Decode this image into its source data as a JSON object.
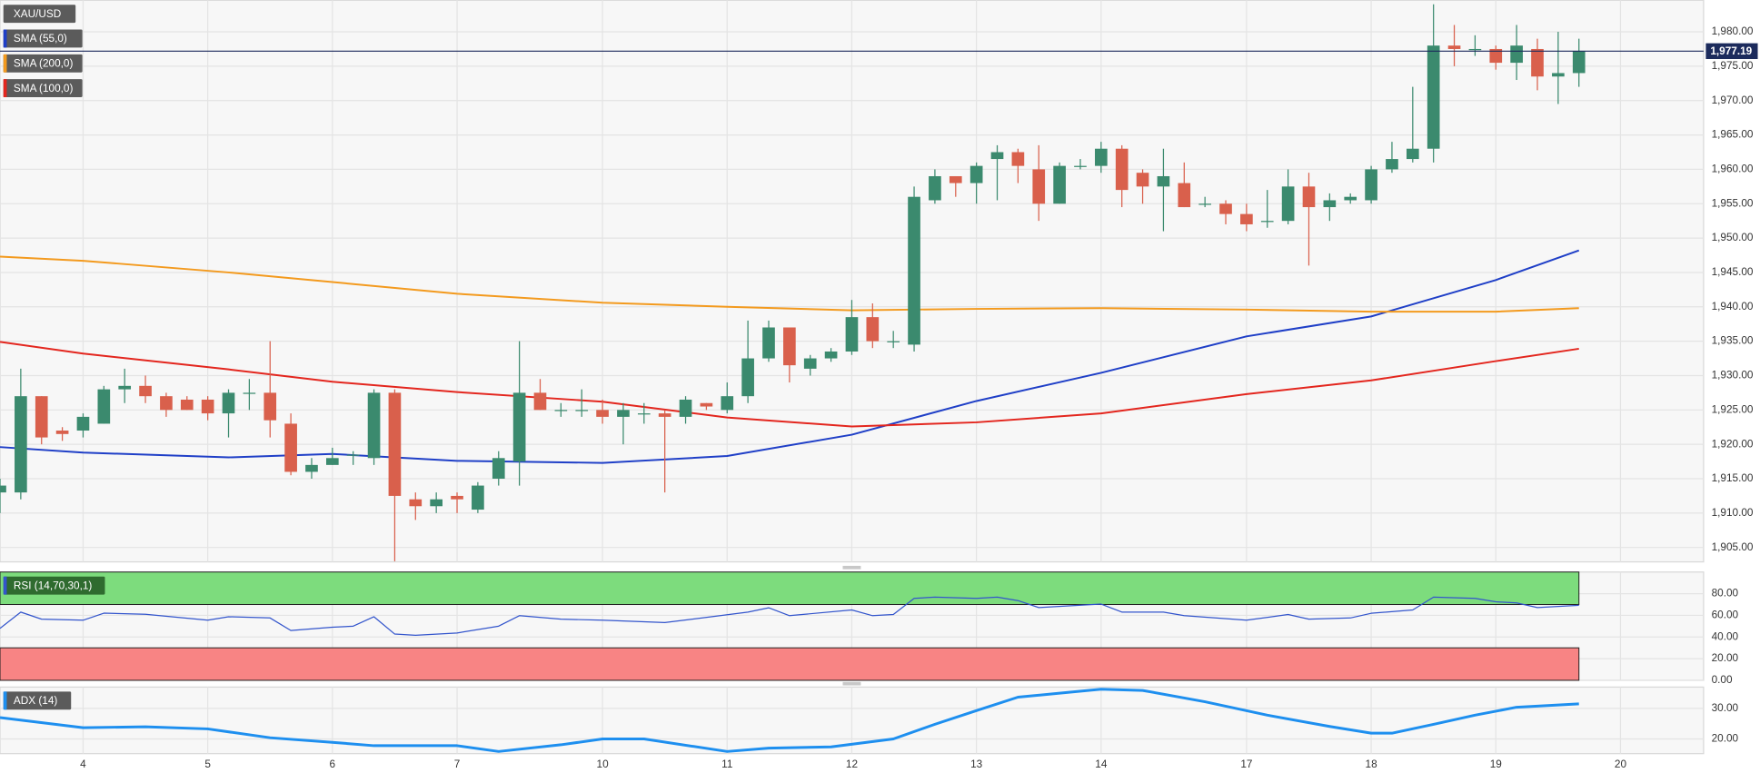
{
  "chart_data": [
    {
      "type": "candlestick",
      "title": "XAU/USD",
      "xlim": [
        0,
        82
      ],
      "xticks": [
        {
          "value": 4,
          "label": "4"
        },
        {
          "value": 10,
          "label": "5"
        },
        {
          "value": 16,
          "label": "6"
        },
        {
          "value": 22,
          "label": "7"
        },
        {
          "value": 29,
          "label": "10"
        },
        {
          "value": 35,
          "label": "11"
        },
        {
          "value": 41,
          "label": "12"
        },
        {
          "value": 47,
          "label": "13"
        },
        {
          "value": 53,
          "label": "14"
        },
        {
          "value": 60,
          "label": "17"
        },
        {
          "value": 66,
          "label": "18"
        },
        {
          "value": 72,
          "label": "19"
        },
        {
          "value": 78,
          "label": "20"
        }
      ],
      "ylim": [
        1902.9,
        1984.6
      ],
      "yticks": [
        {
          "value": 1905,
          "label": "1,905.00"
        },
        {
          "value": 1910,
          "label": "1,910.00"
        },
        {
          "value": 1915,
          "label": "1,915.00"
        },
        {
          "value": 1920,
          "label": "1,920.00"
        },
        {
          "value": 1925,
          "label": "1,925.00"
        },
        {
          "value": 1930,
          "label": "1,930.00"
        },
        {
          "value": 1935,
          "label": "1,935.00"
        },
        {
          "value": 1940,
          "label": "1,940.00"
        },
        {
          "value": 1945,
          "label": "1,945.00"
        },
        {
          "value": 1950,
          "label": "1,950.00"
        },
        {
          "value": 1955,
          "label": "1,955.00"
        },
        {
          "value": 1960,
          "label": "1,960.00"
        },
        {
          "value": 1965,
          "label": "1,965.00"
        },
        {
          "value": 1970,
          "label": "1,970.00"
        },
        {
          "value": 1975,
          "label": "1,975.00"
        },
        {
          "value": 1980,
          "label": "1,980.00"
        }
      ],
      "grid": true,
      "up_color": "#3b8a6e",
      "down_color": "#d9604c",
      "open": [
        1913,
        1913,
        1927,
        1922,
        1922,
        1923,
        1928,
        1928.5,
        1927,
        1926.5,
        1926.5,
        1924.5,
        1927.5,
        1927.5,
        1923,
        1916,
        1917,
        1918.5,
        1918,
        1927.5,
        1912,
        1911,
        1912.5,
        1910.5,
        1915,
        1917.5,
        1927.5,
        1925,
        1925,
        1925,
        1924,
        1924.5,
        1924.5,
        1924,
        1926,
        1925,
        1927,
        1932.5,
        1937,
        1931,
        1932.5,
        1933.5,
        1938.5,
        1935,
        1934.5,
        1955.5,
        1959,
        1958,
        1961.5,
        1962.5,
        1960,
        1955,
        1960.5,
        1960.5,
        1963,
        1959.5,
        1957.5,
        1958,
        1955,
        1955,
        1953.5,
        1952.5,
        1952.5,
        1957.5,
        1954.5,
        1955.5,
        1955.5,
        1960,
        1961.5,
        1963,
        1978,
        1977.5,
        1977.5,
        1975.5,
        1977.5,
        1973.5,
        1974
      ],
      "high": [
        1915,
        1931,
        1927,
        1922.5,
        1924.5,
        1928.5,
        1931,
        1930,
        1927.5,
        1927,
        1927,
        1928,
        1929.5,
        1935,
        1924.5,
        1918,
        1919.5,
        1919,
        1928,
        1928,
        1913,
        1913,
        1913,
        1914.5,
        1919,
        1935,
        1929.5,
        1926,
        1928,
        1926.5,
        1926,
        1926,
        1925,
        1927,
        1926,
        1929,
        1938,
        1938,
        1937,
        1933,
        1934,
        1941,
        1940.5,
        1936.5,
        1957.5,
        1960,
        1959,
        1961,
        1963.5,
        1963,
        1963.5,
        1961,
        1961.5,
        1964,
        1963.5,
        1960,
        1963,
        1961,
        1956,
        1955.5,
        1955,
        1957,
        1960,
        1959.5,
        1956.5,
        1956.5,
        1960.5,
        1964,
        1972,
        1984,
        1981,
        1979.5,
        1978,
        1981,
        1979,
        1980,
        1979
      ],
      "low": [
        1910,
        1912,
        1920,
        1920.5,
        1921,
        1923,
        1926,
        1926,
        1924,
        1925,
        1923.5,
        1921,
        1925,
        1921,
        1915.5,
        1915,
        1917,
        1917,
        1917,
        1903,
        1909,
        1910,
        1910,
        1910,
        1914,
        1914,
        1925,
        1924,
        1924,
        1923,
        1920,
        1923,
        1913,
        1923,
        1925,
        1924.5,
        1926,
        1932,
        1929,
        1930,
        1932,
        1933,
        1934,
        1934,
        1933.5,
        1955,
        1956,
        1955,
        1955.5,
        1958,
        1952.5,
        1955,
        1960,
        1959.5,
        1954.5,
        1955,
        1951,
        1954.5,
        1954.5,
        1952,
        1951,
        1951.5,
        1952,
        1946,
        1952.5,
        1955,
        1955,
        1959.5,
        1961,
        1961,
        1975,
        1976.5,
        1974.5,
        1973,
        1971.5,
        1969.5,
        1972
      ],
      "close": [
        1914,
        1927,
        1921,
        1921.5,
        1924,
        1928,
        1928.5,
        1927,
        1925,
        1925,
        1924.5,
        1927.5,
        1927.5,
        1923.5,
        1916,
        1917,
        1918,
        1918.5,
        1927.5,
        1912.5,
        1911,
        1912,
        1912,
        1914,
        1918,
        1927.5,
        1925,
        1925,
        1925,
        1924,
        1925,
        1924.5,
        1924,
        1926.5,
        1925.5,
        1927,
        1932.5,
        1937,
        1931.5,
        1932.5,
        1933.5,
        1938.5,
        1935,
        1935,
        1956,
        1959,
        1958,
        1960.5,
        1962.5,
        1960.5,
        1955,
        1960.5,
        1960.5,
        1963,
        1957,
        1957.5,
        1959,
        1954.5,
        1955,
        1953.5,
        1952,
        1952.5,
        1957.5,
        1954.5,
        1955.5,
        1956,
        1960,
        1961.5,
        1963,
        1978,
        1977.5,
        1977.5,
        1975.5,
        1978,
        1973.5,
        1974,
        1977.19
      ],
      "last_price": {
        "value": 1977.19,
        "label": "1,977.19"
      },
      "last_price_color": "#1c2b5c",
      "series": [
        {
          "name": "SMA (55,0)",
          "color": "#1f3fc7",
          "x": [
            0,
            4,
            11,
            16,
            22,
            29,
            35,
            41,
            47,
            53,
            60,
            66,
            72,
            76
          ],
          "values": [
            1919.6,
            1918.8,
            1918.1,
            1918.6,
            1917.6,
            1917.3,
            1918.3,
            1921.4,
            1926.3,
            1930.4,
            1935.7,
            1938.6,
            1943.9,
            1948.2
          ]
        },
        {
          "name": "SMA (200,0)",
          "color": "#f39a1e",
          "x": [
            0,
            4,
            11,
            16,
            22,
            29,
            35,
            41,
            47,
            53,
            60,
            66,
            72,
            76
          ],
          "values": [
            1947.3,
            1946.7,
            1945.0,
            1943.6,
            1941.9,
            1940.6,
            1940.0,
            1939.5,
            1939.7,
            1939.8,
            1939.6,
            1939.3,
            1939.3,
            1939.8
          ]
        },
        {
          "name": "SMA (100,0)",
          "color": "#e3261e",
          "x": [
            0,
            4,
            11,
            16,
            22,
            29,
            35,
            41,
            47,
            53,
            60,
            66,
            72,
            76
          ],
          "values": [
            1934.9,
            1933.2,
            1930.9,
            1929.1,
            1927.6,
            1926.2,
            1923.9,
            1922.6,
            1923.2,
            1924.5,
            1927.3,
            1929.3,
            1932.1,
            1933.9
          ]
        }
      ]
    },
    {
      "type": "line",
      "title": "RSI (14,70,30,1)",
      "xlim": [
        0,
        82
      ],
      "ylim": [
        0,
        100
      ],
      "yticks": [
        {
          "value": 0,
          "label": "0.00"
        },
        {
          "value": 20,
          "label": "20.00"
        },
        {
          "value": 40,
          "label": "40.00"
        },
        {
          "value": 60,
          "label": "60.00"
        },
        {
          "value": 80,
          "label": "80.00"
        }
      ],
      "grid": true,
      "bands": [
        {
          "from": 70,
          "to": 100,
          "color": "#7ddc7d"
        },
        {
          "from": 0,
          "to": 30,
          "color": "#f88484"
        }
      ],
      "color": "#3355cc",
      "x": [
        0,
        1,
        2,
        4,
        5,
        7,
        10,
        11,
        13,
        14,
        16,
        17,
        18,
        19,
        20,
        22,
        24,
        25,
        27,
        29,
        32,
        36,
        37,
        38,
        41,
        42,
        43,
        44,
        45,
        47,
        48,
        49,
        50,
        53,
        54,
        56,
        57,
        60,
        62,
        63,
        65,
        66,
        68,
        69,
        71,
        72,
        73,
        74,
        76
      ],
      "values": [
        48,
        63,
        56.5,
        55.5,
        62,
        61,
        55.5,
        58.7,
        57.6,
        46,
        49,
        50,
        58.7,
        42.7,
        41.6,
        43.7,
        50,
        59.7,
        56.5,
        55.5,
        53.3,
        63,
        67,
        59.7,
        65,
        59.7,
        60.8,
        75.7,
        76.8,
        75.7,
        76.8,
        73.6,
        67.2,
        70.4,
        63,
        63,
        59.7,
        55.5,
        60.8,
        56.5,
        57.6,
        61.9,
        65,
        76.8,
        75.7,
        72.5,
        71.5,
        67.2,
        69.3
      ]
    },
    {
      "type": "line",
      "title": "ADX (14)",
      "xlim": [
        0,
        82
      ],
      "ylim": [
        15.2,
        37
      ],
      "yticks": [
        {
          "value": 20,
          "label": "20.00"
        },
        {
          "value": 30,
          "label": "30.00"
        }
      ],
      "grid": true,
      "color": "#1e8fef",
      "x": [
        0,
        4,
        7,
        10,
        13,
        16,
        18,
        22,
        24,
        27,
        29,
        31,
        35,
        37,
        40,
        43,
        45,
        47,
        49,
        53,
        55,
        58,
        61,
        64,
        66,
        67,
        69,
        71,
        73,
        76
      ],
      "values": [
        27,
        23.7,
        24,
        23.3,
        20.4,
        18.9,
        17.8,
        17.8,
        15.9,
        18.1,
        20,
        20,
        15.9,
        17,
        17.4,
        20,
        24.8,
        29.3,
        33.7,
        36.3,
        35.9,
        32.2,
        27.8,
        24.1,
        21.9,
        21.9,
        24.8,
        27.8,
        30.4,
        31.5
      ]
    }
  ]
}
